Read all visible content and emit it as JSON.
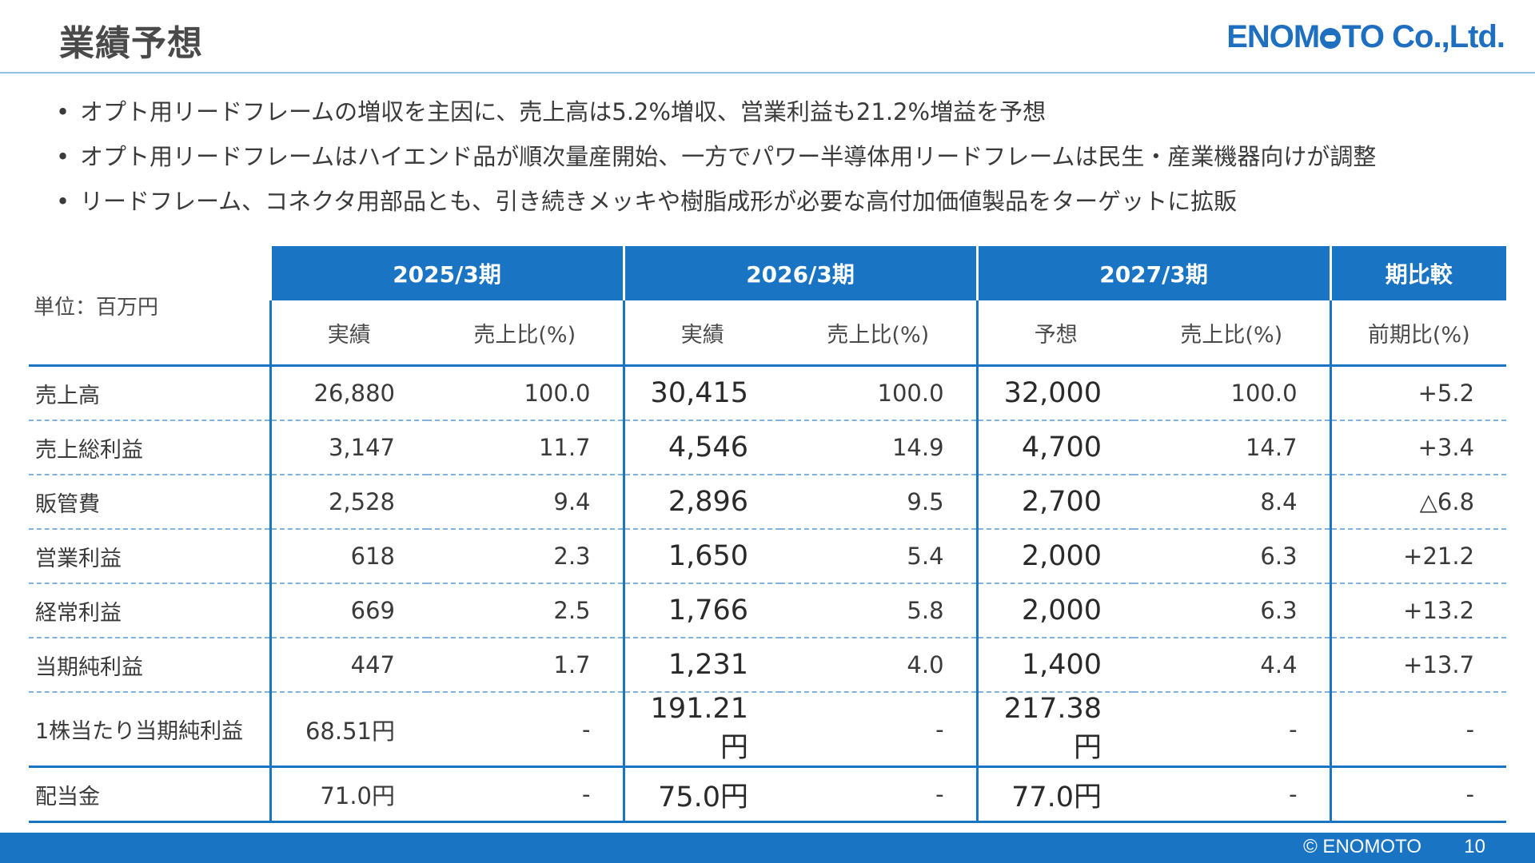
{
  "header": {
    "title": "業績予想",
    "logo_text_1": "ENOM",
    "logo_text_2": "TO Co.,Ltd."
  },
  "bullets": [
    "オプト用リードフレームの増収を主因に、売上高は5.2%増収、営業利益も21.2%増益を予想",
    "オプト用リードフレームはハイエンド品が順次量産開始、一方でパワー半導体用リードフレームは民生・産業機器向けが調整",
    "リードフレーム、コネクタ用部品とも、引き続きメッキや樹脂成形が必要な高付加価値製品をターゲットに拡販"
  ],
  "table": {
    "unit": "単位：百万円",
    "periods": [
      "2025/3期",
      "2026/3期",
      "2027/3期",
      "期比較"
    ],
    "subheaders": [
      "実績",
      "売上比(%)",
      "実績",
      "売上比(%)",
      "予想",
      "売上比(%)",
      "前期比(%)"
    ],
    "rows": [
      {
        "label": "売上高",
        "c": [
          "26,880",
          "100.0",
          "30,415",
          "100.0",
          "32,000",
          "100.0",
          "+5.2"
        ]
      },
      {
        "label": "売上総利益",
        "c": [
          "3,147",
          "11.7",
          "4,546",
          "14.9",
          "4,700",
          "14.7",
          "+3.4"
        ]
      },
      {
        "label": "販管費",
        "c": [
          "2,528",
          "9.4",
          "2,896",
          "9.5",
          "2,700",
          "8.4",
          "△6.8"
        ]
      },
      {
        "label": "営業利益",
        "c": [
          "618",
          "2.3",
          "1,650",
          "5.4",
          "2,000",
          "6.3",
          "+21.2"
        ]
      },
      {
        "label": "経常利益",
        "c": [
          "669",
          "2.5",
          "1,766",
          "5.8",
          "2,000",
          "6.3",
          "+13.2"
        ]
      },
      {
        "label": "当期純利益",
        "c": [
          "447",
          "1.7",
          "1,231",
          "4.0",
          "1,400",
          "4.4",
          "+13.7"
        ]
      },
      {
        "label": "1株当たり当期純利益",
        "c": [
          "68.51円",
          "-",
          "191.21円",
          "-",
          "217.38円",
          "-",
          "-"
        ]
      },
      {
        "label": "配当金",
        "c": [
          "71.0円",
          "-",
          "75.0円",
          "-",
          "77.0円",
          "-",
          "-"
        ]
      }
    ]
  },
  "footer": {
    "copyright": "© ENOMOTO",
    "page": "10"
  },
  "colors": {
    "accent": "#1a74c4",
    "divider": "#8fc3e6"
  }
}
